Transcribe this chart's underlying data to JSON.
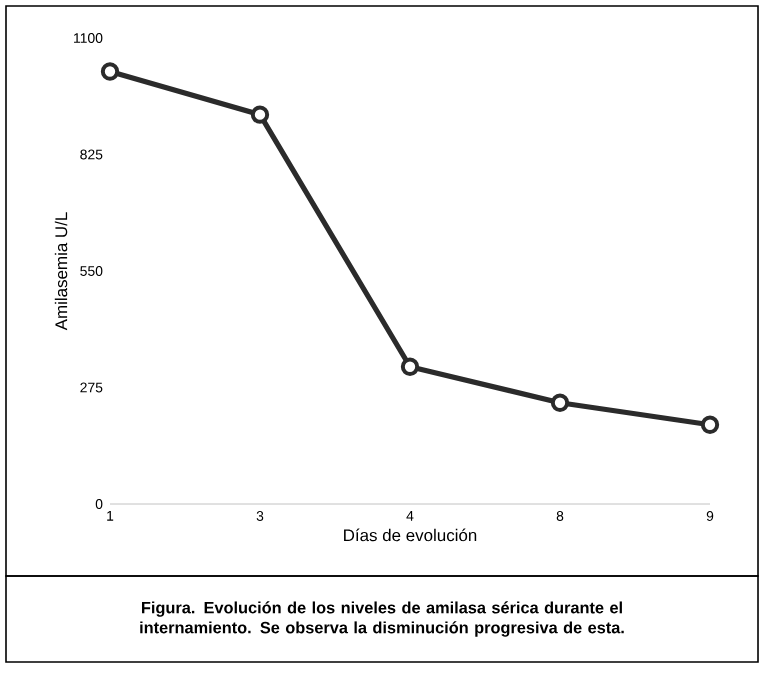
{
  "chart_data": {
    "type": "line",
    "xlabel": "Días de evolución",
    "ylabel": "Amilasemia U/L",
    "categories": [
      "1",
      "3",
      "4",
      "8",
      "9"
    ],
    "series": [
      {
        "color": "#2b2b2b",
        "values": [
          1021,
          919,
          324,
          239,
          187
        ]
      }
    ],
    "ylim": [
      0,
      1100
    ],
    "yticks": [
      0,
      275,
      550,
      825,
      1100
    ],
    "marker": "circle",
    "line_style": "solid",
    "grid": false,
    "annotations": [
      "**Figura. Evolución de los niveles de amilasa sérica durante el internamiento. Se observa la disminución progresiva de esta.**"
    ]
  }
}
